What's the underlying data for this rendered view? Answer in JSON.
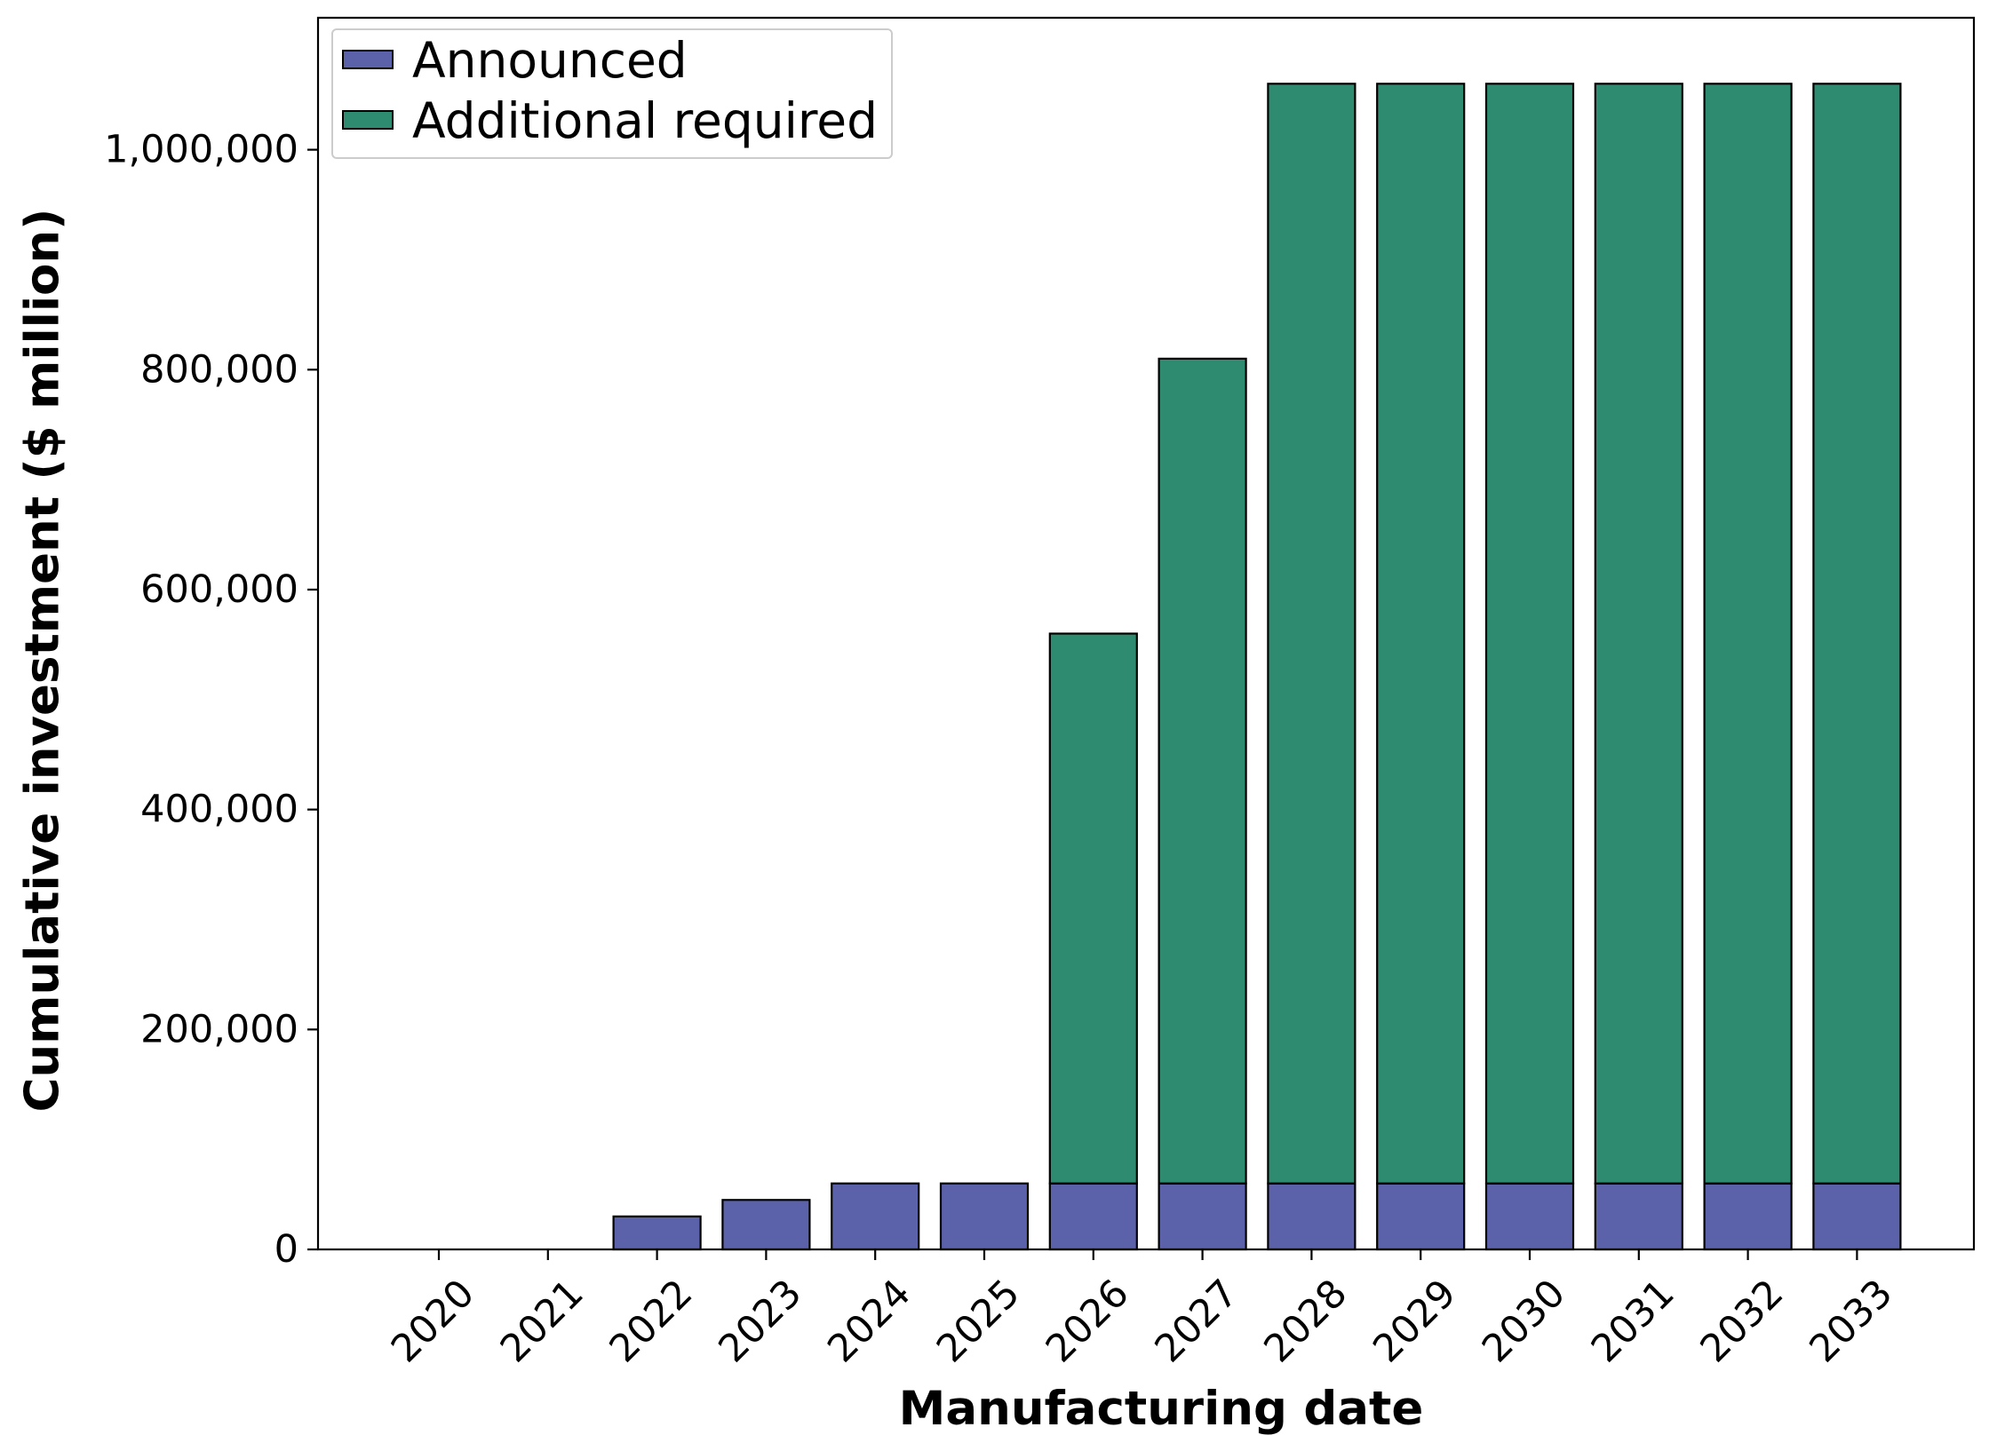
{
  "chart_data": {
    "type": "bar",
    "stacked": true,
    "title": "",
    "xlabel": "Manufacturing date",
    "ylabel": "Cumulative investment ($ million)",
    "categories": [
      "2020",
      "2021",
      "2022",
      "2023",
      "2024",
      "2025",
      "2026",
      "2027",
      "2028",
      "2029",
      "2030",
      "2031",
      "2032",
      "2033"
    ],
    "series": [
      {
        "name": "Announced",
        "color": "#5b62a9",
        "values": [
          0,
          0,
          30000,
          45000,
          60000,
          60000,
          60000,
          60000,
          60000,
          60000,
          60000,
          60000,
          60000,
          60000
        ]
      },
      {
        "name": "Additional required",
        "color": "#2e8b6f",
        "values": [
          0,
          0,
          0,
          0,
          0,
          0,
          500000,
          750000,
          1000000,
          1000000,
          1000000,
          1000000,
          1000000,
          1000000
        ]
      }
    ],
    "ylim": [
      0,
      1120000
    ],
    "yticks": [
      0,
      200000,
      400000,
      600000,
      800000,
      1000000
    ],
    "ytick_labels": [
      "0",
      "200,000",
      "400,000",
      "600,000",
      "800,000",
      "1,000,000"
    ],
    "grid": false,
    "legend_position": "upper-left"
  }
}
